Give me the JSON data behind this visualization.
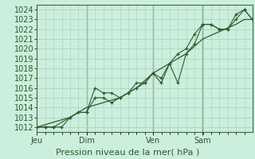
{
  "title": "Pression niveau de la mer( hPa )",
  "ylabel_values": [
    1012,
    1013,
    1014,
    1015,
    1016,
    1017,
    1018,
    1019,
    1020,
    1021,
    1022,
    1023,
    1024
  ],
  "ylim": [
    1011.5,
    1024.5
  ],
  "background_color": "#cceedd",
  "grid_color": "#aaccbb",
  "line_color": "#2d5a2d",
  "marker_color": "#2d5a2d",
  "xtick_labels": [
    "Jeu",
    "Dim",
    "Ven",
    "Sam"
  ],
  "xtick_positions": [
    0.0,
    0.23,
    0.538,
    0.769
  ],
  "xmax": 1.0,
  "vline_positions": [
    0.23,
    0.538,
    0.769
  ],
  "series1_x": [
    0.0,
    0.038,
    0.077,
    0.115,
    0.154,
    0.192,
    0.23,
    0.269,
    0.308,
    0.346,
    0.385,
    0.423,
    0.462,
    0.5,
    0.538,
    0.577,
    0.615,
    0.654,
    0.692,
    0.731,
    0.769,
    0.808,
    0.846,
    0.885,
    0.923,
    0.962,
    1.0
  ],
  "series1_y": [
    1012.0,
    1012.0,
    1012.0,
    1012.0,
    1013.0,
    1013.5,
    1013.5,
    1016.0,
    1015.5,
    1015.5,
    1015.0,
    1015.5,
    1016.5,
    1016.5,
    1017.5,
    1017.0,
    1018.5,
    1019.5,
    1020.0,
    1021.5,
    1022.5,
    1022.5,
    1022.0,
    1022.0,
    1023.5,
    1024.0,
    1023.0
  ],
  "series2_x": [
    0.0,
    0.038,
    0.077,
    0.154,
    0.192,
    0.23,
    0.269,
    0.308,
    0.346,
    0.385,
    0.423,
    0.462,
    0.5,
    0.538,
    0.577,
    0.615,
    0.654,
    0.692,
    0.731,
    0.769,
    0.808,
    0.846,
    0.885,
    0.923,
    0.962,
    1.0
  ],
  "series2_y": [
    1012.0,
    1012.0,
    1012.0,
    1013.0,
    1013.5,
    1013.5,
    1015.0,
    1015.0,
    1014.5,
    1015.0,
    1015.5,
    1016.0,
    1016.5,
    1017.5,
    1016.5,
    1018.5,
    1016.5,
    1019.5,
    1020.5,
    1022.5,
    1022.5,
    1022.0,
    1022.0,
    1023.0,
    1024.0,
    1023.0
  ],
  "series3_x": [
    0.0,
    0.154,
    0.23,
    0.385,
    0.462,
    0.538,
    0.692,
    0.769,
    0.923,
    0.962,
    1.0
  ],
  "series3_y": [
    1012.0,
    1013.0,
    1014.0,
    1015.0,
    1016.0,
    1017.5,
    1019.5,
    1021.0,
    1022.5,
    1023.0,
    1023.0
  ],
  "font_color": "#2d5a2d",
  "fontsize": 7,
  "xlabel_fontsize": 8
}
